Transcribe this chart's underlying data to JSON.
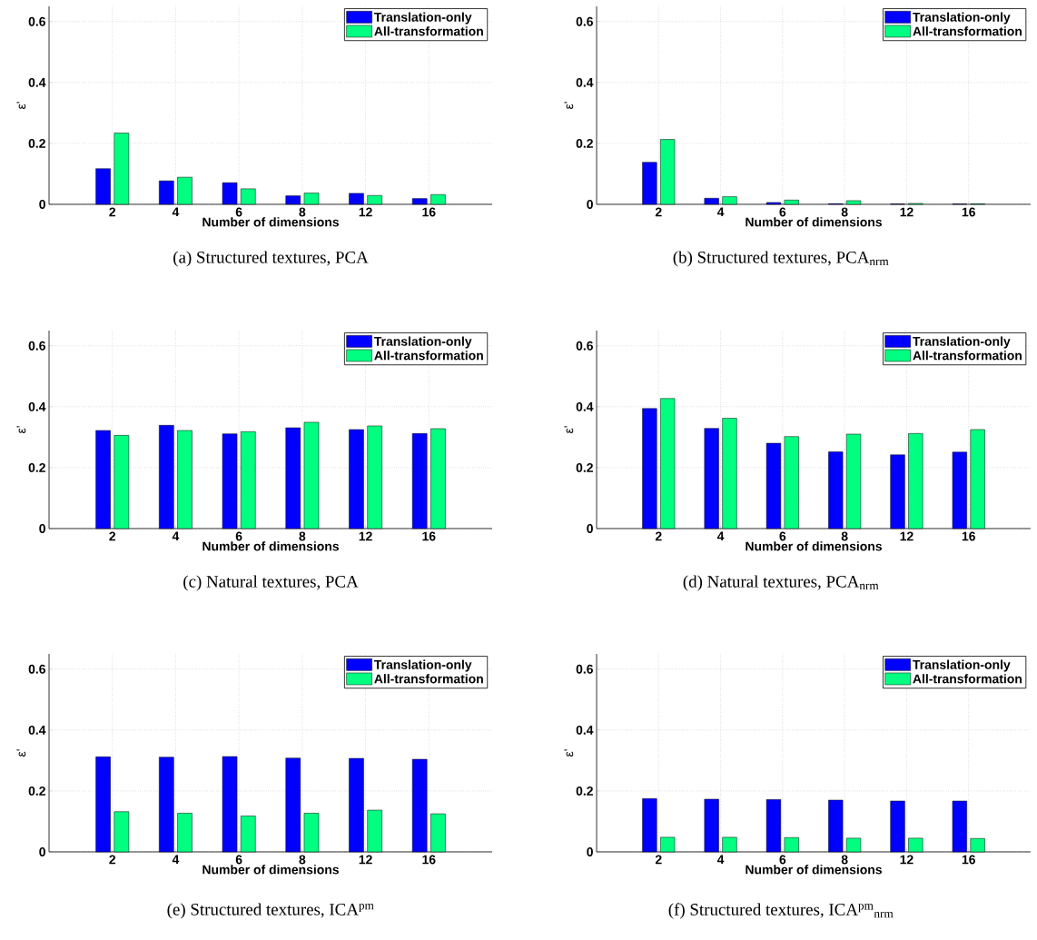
{
  "chart_data": [
    {
      "type": "bar",
      "categories": [
        "2",
        "4",
        "6",
        "8",
        "12",
        "16"
      ],
      "xlabel": "Number of dimensions",
      "ylabel": "ε'",
      "ylim": [
        0,
        0.65
      ],
      "yticks": [
        0,
        0.2,
        0.4,
        0.6
      ],
      "grid": true,
      "legend": "top right",
      "series": [
        {
          "name": "Translation-only",
          "color": "#0000ff",
          "values": [
            0.117,
            0.077,
            0.071,
            0.028,
            0.036,
            0.019
          ]
        },
        {
          "name": "All-transformation",
          "color": "#00ff80",
          "values": [
            0.234,
            0.089,
            0.051,
            0.037,
            0.029,
            0.032
          ]
        }
      ],
      "annotations": [
        "(a) Structured textures, PCA"
      ]
    },
    {
      "type": "bar",
      "categories": [
        "2",
        "4",
        "6",
        "8",
        "12",
        "16"
      ],
      "xlabel": "Number of dimensions",
      "ylabel": "ε'",
      "ylim": [
        0,
        0.65
      ],
      "yticks": [
        0,
        0.2,
        0.4,
        0.6
      ],
      "grid": true,
      "legend": "top right",
      "series": [
        {
          "name": "Translation-only",
          "color": "#0000ff",
          "values": [
            0.138,
            0.02,
            0.006,
            0.002,
            0.001,
            0.001
          ]
        },
        {
          "name": "All-transformation",
          "color": "#00ff80",
          "values": [
            0.213,
            0.025,
            0.014,
            0.012,
            0.003,
            0.002
          ]
        }
      ],
      "annotations": [
        "(b) Structured textures, PCA$_{nrm}$"
      ]
    },
    {
      "type": "bar",
      "categories": [
        "2",
        "4",
        "6",
        "8",
        "12",
        "16"
      ],
      "xlabel": "Number of dimensions",
      "ylabel": "ε'",
      "ylim": [
        0,
        0.65
      ],
      "yticks": [
        0,
        0.2,
        0.4,
        0.6
      ],
      "grid": true,
      "legend": "top right",
      "series": [
        {
          "name": "Translation-only",
          "color": "#0000ff",
          "values": [
            0.322,
            0.339,
            0.311,
            0.331,
            0.325,
            0.312
          ]
        },
        {
          "name": "All-transformation",
          "color": "#00ff80",
          "values": [
            0.306,
            0.322,
            0.318,
            0.349,
            0.337,
            0.328
          ]
        }
      ],
      "annotations": [
        "(c) Natural textures, PCA"
      ]
    },
    {
      "type": "bar",
      "categories": [
        "2",
        "4",
        "6",
        "8",
        "12",
        "16"
      ],
      "xlabel": "Number of dimensions",
      "ylabel": "ε'",
      "ylim": [
        0,
        0.65
      ],
      "yticks": [
        0,
        0.2,
        0.4,
        0.6
      ],
      "grid": true,
      "legend": "top right",
      "series": [
        {
          "name": "Translation-only",
          "color": "#0000ff",
          "values": [
            0.394,
            0.329,
            0.28,
            0.252,
            0.242,
            0.251
          ]
        },
        {
          "name": "All-transformation",
          "color": "#00ff80",
          "values": [
            0.427,
            0.362,
            0.302,
            0.31,
            0.312,
            0.325
          ]
        }
      ],
      "annotations": [
        "(d) Natural textures, PCA$_{nrm}$"
      ]
    },
    {
      "type": "bar",
      "categories": [
        "2",
        "4",
        "6",
        "8",
        "12",
        "16"
      ],
      "xlabel": "Number of dimensions",
      "ylabel": "ε'",
      "ylim": [
        0,
        0.65
      ],
      "yticks": [
        0,
        0.2,
        0.4,
        0.6
      ],
      "grid": true,
      "legend": "top right",
      "series": [
        {
          "name": "Translation-only",
          "color": "#0000ff",
          "values": [
            0.312,
            0.311,
            0.313,
            0.308,
            0.307,
            0.304
          ]
        },
        {
          "name": "All-transformation",
          "color": "#00ff80",
          "values": [
            0.132,
            0.127,
            0.118,
            0.127,
            0.137,
            0.125
          ]
        }
      ],
      "annotations": [
        "(e) Structured textures, ICA$^{pm}$"
      ]
    },
    {
      "type": "bar",
      "categories": [
        "2",
        "4",
        "6",
        "8",
        "12",
        "16"
      ],
      "xlabel": "Number of dimensions",
      "ylabel": "ε'",
      "ylim": [
        0,
        0.65
      ],
      "yticks": [
        0,
        0.2,
        0.4,
        0.6
      ],
      "grid": true,
      "legend": "top right",
      "series": [
        {
          "name": "Translation-only",
          "color": "#0000ff",
          "values": [
            0.175,
            0.173,
            0.172,
            0.17,
            0.167,
            0.167
          ]
        },
        {
          "name": "All-transformation",
          "color": "#00ff80",
          "values": [
            0.048,
            0.048,
            0.047,
            0.045,
            0.045,
            0.044
          ]
        }
      ],
      "annotations": [
        "(f) Structured textures, ICA$^{pm}$$_{nrm}$"
      ]
    }
  ]
}
